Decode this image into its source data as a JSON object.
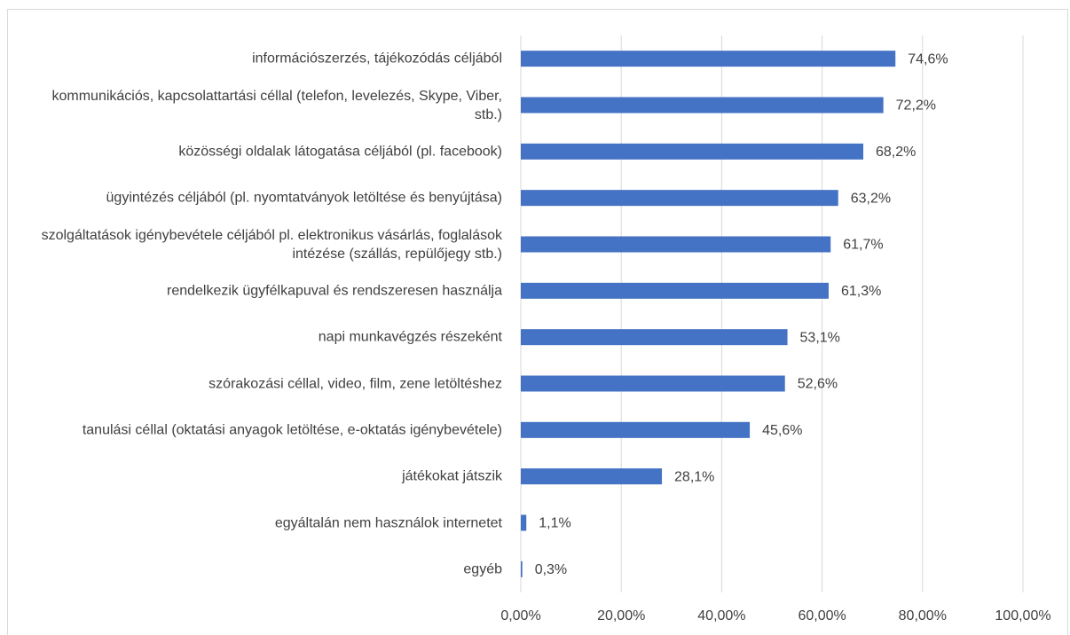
{
  "chart_data": {
    "type": "barh",
    "categories": [
      "információszerzés, tájékozódás céljából",
      "kommunikációs, kapcsolattartási céllal (telefon, levelezés, Skype, Viber, stb.)",
      "közösségi oldalak látogatása céljából (pl. facebook)",
      "ügyintézés céljából (pl. nyomtatványok letöltése és benyújtása)",
      "szolgáltatások igénybevétele céljából pl. elektronikus vásárlás, foglalások intézése (szállás, repülőjegy stb.)",
      "rendelkezik ügyfélkapuval és rendszeresen használja",
      "napi munkavégzés részeként",
      "szórakozási céllal, video, film, zene letöltéshez",
      "tanulási céllal (oktatási anyagok letöltése, e-oktatás igénybevétele)",
      "játékokat játszik",
      "egyáltalán nem használok internetet",
      "egyéb"
    ],
    "values": [
      74.6,
      72.2,
      68.2,
      63.2,
      61.7,
      61.3,
      53.1,
      52.6,
      45.6,
      28.1,
      1.1,
      0.3
    ],
    "value_labels": [
      "74,6%",
      "72,2%",
      "68,2%",
      "63,2%",
      "61,7%",
      "61,3%",
      "53,1%",
      "52,6%",
      "45,6%",
      "28,1%",
      "1,1%",
      "0,3%"
    ],
    "color": "#4472c4",
    "xlim": [
      0,
      100
    ],
    "xticks": [
      {
        "value": 0,
        "label": "0,00%"
      },
      {
        "value": 20,
        "label": "20,00%"
      },
      {
        "value": 40,
        "label": "40,00%"
      },
      {
        "value": 60,
        "label": "60,00%"
      },
      {
        "value": 80,
        "label": "80,00%"
      },
      {
        "value": 100,
        "label": "100,00%"
      }
    ],
    "grid": true
  }
}
